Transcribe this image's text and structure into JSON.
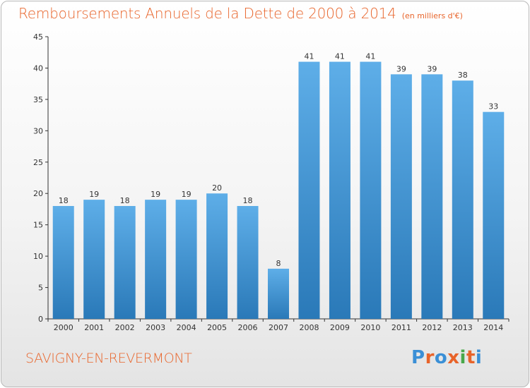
{
  "header": {
    "title": "Remboursements Annuels de la Dette de 2000 à 2014",
    "unit": "(en milliers d'€)"
  },
  "footer": {
    "place": "SAVIGNY-EN-REVERMONT",
    "logo": "Proxiti"
  },
  "colors": {
    "title": "#e8642a",
    "bar_top": "#5eaee8",
    "bar_bottom": "#2a79b8",
    "axis": "#333333",
    "logo_letters": [
      "#3a8fd6",
      "#e8642a",
      "#3a8fd6",
      "#e8642a",
      "#49a84a",
      "#e8642a",
      "#3a8fd6"
    ]
  },
  "chart_data": {
    "type": "bar",
    "categories": [
      "2000",
      "2001",
      "2002",
      "2003",
      "2004",
      "2005",
      "2006",
      "2007",
      "2008",
      "2009",
      "2010",
      "2011",
      "2012",
      "2013",
      "2014"
    ],
    "values": [
      18,
      19,
      18,
      19,
      19,
      20,
      18,
      8,
      41,
      41,
      41,
      39,
      39,
      38,
      33
    ],
    "yticks": [
      0,
      5,
      10,
      15,
      20,
      25,
      30,
      35,
      40,
      45
    ],
    "ylim": [
      0,
      45
    ],
    "grid": false,
    "data_labels": true
  }
}
